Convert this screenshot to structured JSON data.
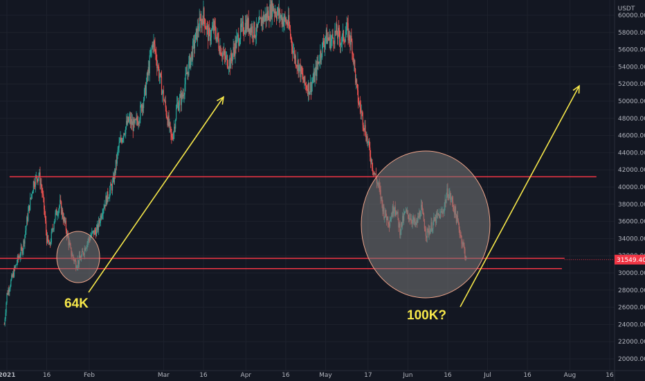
{
  "chart_data": {
    "type": "candlestick",
    "quote_currency": "USDT",
    "y_ticks": [
      "60000.00",
      "58000.00",
      "56000.00",
      "54000.00",
      "52000.00",
      "50000.00",
      "48000.00",
      "46000.00",
      "44000.00",
      "42000.00",
      "40000.00",
      "38000.00",
      "36000.00",
      "34000.00",
      "32000.00",
      "30000.00",
      "28000.00",
      "26000.00",
      "24000.00",
      "22000.00",
      "20000.00"
    ],
    "ylim": [
      19200,
      61400
    ],
    "x_ticks": [
      {
        "label": "2021",
        "day": 0,
        "bold": true
      },
      {
        "label": "16",
        "day": 15
      },
      {
        "label": "Feb",
        "day": 31
      },
      {
        "label": "Mar",
        "day": 59
      },
      {
        "label": "16",
        "day": 74
      },
      {
        "label": "Apr",
        "day": 90
      },
      {
        "label": "16",
        "day": 105
      },
      {
        "label": "May",
        "day": 120
      },
      {
        "label": "17",
        "day": 136
      },
      {
        "label": "Jun",
        "day": 151
      },
      {
        "label": "16",
        "day": 166
      },
      {
        "label": "Jul",
        "day": 181
      },
      {
        "label": "16",
        "day": 196
      },
      {
        "label": "Aug",
        "day": 212
      },
      {
        "label": "16",
        "day": 227
      }
    ],
    "price_path": [
      [
        -1,
        24000
      ],
      [
        0,
        27500
      ],
      [
        2,
        29500
      ],
      [
        4,
        31500
      ],
      [
        6,
        33000
      ],
      [
        8,
        37000
      ],
      [
        10,
        40500
      ],
      [
        12,
        41500
      ],
      [
        13,
        40000
      ],
      [
        14,
        37500
      ],
      [
        15,
        34000
      ],
      [
        16,
        33000
      ],
      [
        18,
        36500
      ],
      [
        20,
        38000
      ],
      [
        22,
        35500
      ],
      [
        24,
        32500
      ],
      [
        26,
        31000
      ],
      [
        28,
        31800
      ],
      [
        30,
        33500
      ],
      [
        32,
        34500
      ],
      [
        34,
        35000
      ],
      [
        36,
        37500
      ],
      [
        38,
        39000
      ],
      [
        40,
        40500
      ],
      [
        42,
        44500
      ],
      [
        44,
        46500
      ],
      [
        46,
        47800
      ],
      [
        48,
        47000
      ],
      [
        50,
        48500
      ],
      [
        52,
        51000
      ],
      [
        54,
        55000
      ],
      [
        55,
        57000
      ],
      [
        56,
        55500
      ],
      [
        58,
        52000
      ],
      [
        60,
        48800
      ],
      [
        62,
        45500
      ],
      [
        63,
        47000
      ],
      [
        64,
        49500
      ],
      [
        66,
        50500
      ],
      [
        68,
        53500
      ],
      [
        70,
        56000
      ],
      [
        72,
        58500
      ],
      [
        74,
        60000
      ],
      [
        76,
        57500
      ],
      [
        78,
        58500
      ],
      [
        80,
        56500
      ],
      [
        82,
        55000
      ],
      [
        84,
        54500
      ],
      [
        86,
        56500
      ],
      [
        88,
        58000
      ],
      [
        90,
        59000
      ],
      [
        92,
        58500
      ],
      [
        94,
        58000
      ],
      [
        96,
        59500
      ],
      [
        98,
        60000
      ],
      [
        100,
        61000
      ],
      [
        102,
        60200
      ],
      [
        104,
        59500
      ],
      [
        106,
        59000
      ],
      [
        108,
        55500
      ],
      [
        110,
        54000
      ],
      [
        112,
        52000
      ],
      [
        114,
        51500
      ],
      [
        116,
        53000
      ],
      [
        118,
        55500
      ],
      [
        120,
        57500
      ],
      [
        122,
        57000
      ],
      [
        124,
        58000
      ],
      [
        126,
        57000
      ],
      [
        128,
        58300
      ],
      [
        130,
        56500
      ],
      [
        132,
        50500
      ],
      [
        134,
        48000
      ],
      [
        136,
        45000
      ],
      [
        138,
        42000
      ],
      [
        140,
        40000
      ],
      [
        142,
        37000
      ],
      [
        144,
        36000
      ],
      [
        146,
        38000
      ],
      [
        148,
        35000
      ],
      [
        150,
        37000
      ],
      [
        152,
        36500
      ],
      [
        154,
        35500
      ],
      [
        156,
        37500
      ],
      [
        158,
        34500
      ],
      [
        160,
        35500
      ],
      [
        162,
        36500
      ],
      [
        164,
        37000
      ],
      [
        166,
        39500
      ],
      [
        168,
        38000
      ],
      [
        170,
        35500
      ],
      [
        172,
        33000
      ],
      [
        173,
        31549
      ]
    ],
    "current_price": "31549.40",
    "horizontal_levels": [
      41200,
      31700,
      30500
    ],
    "annotations": [
      {
        "text": "64K"
      },
      {
        "text": "100K?"
      }
    ]
  },
  "colors": {
    "background": "#131722",
    "grid": "#1e222d",
    "candle_up": "#26a69a",
    "candle_down": "#ef5350",
    "level_line": "#f23645",
    "arrow": "#f7e84a",
    "circle_fill": "rgba(120,120,120,0.55)",
    "circle_stroke": "#f0a58a",
    "price_label_bg": "#f23645"
  }
}
